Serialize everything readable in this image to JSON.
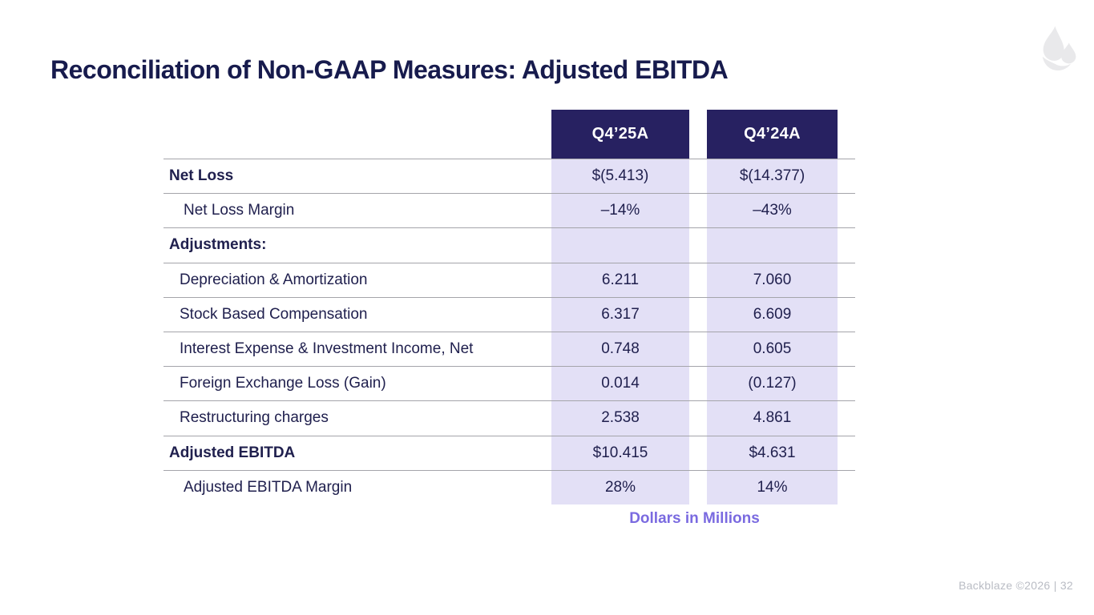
{
  "slide": {
    "title": "Reconciliation of Non-GAAP Measures: Adjusted EBITDA",
    "note": "Dollars in Millions",
    "footer": "Backblaze ©2026 |  32",
    "logo": "backblaze-flame"
  },
  "colors": {
    "header_navy": "#272161",
    "column_highlight": "#e3e0f6",
    "note_purple": "#7a6ae0",
    "text_navy": "#20204e",
    "line_gray": "#a4a4aa",
    "footer_gray": "#b9bcc4"
  },
  "chart_data": {
    "type": "table",
    "title": "Reconciliation of Non-GAAP Measures: Adjusted EBITDA",
    "units": "Dollars in Millions",
    "columns": [
      "Q4’25A",
      "Q4’24A"
    ],
    "rows": [
      {
        "label": "Net Loss",
        "bold": true,
        "indent": 1,
        "values": [
          "$(5.413)",
          "$(14.377)"
        ]
      },
      {
        "label": "Net Loss Margin",
        "bold": false,
        "indent": 2,
        "values": [
          "–14%",
          "–43%"
        ]
      },
      {
        "label": "Adjustments:",
        "bold": true,
        "indent": 1,
        "values": [
          "",
          ""
        ]
      },
      {
        "label": "Depreciation & Amortization",
        "bold": false,
        "indent": 1,
        "values": [
          "6.211",
          "7.060"
        ]
      },
      {
        "label": "Stock Based Compensation",
        "bold": false,
        "indent": 1,
        "values": [
          "6.317",
          "6.609"
        ]
      },
      {
        "label": "Interest Expense & Investment Income, Net",
        "bold": false,
        "indent": 1,
        "values": [
          "0.748",
          "0.605"
        ]
      },
      {
        "label": "Foreign Exchange Loss (Gain)",
        "bold": false,
        "indent": 1,
        "values": [
          "0.014",
          "(0.127)"
        ]
      },
      {
        "label": "Restructuring charges",
        "bold": false,
        "indent": 1,
        "values": [
          "2.538",
          "4.861"
        ]
      },
      {
        "label": "Adjusted EBITDA",
        "bold": true,
        "indent": 1,
        "values": [
          "$10.415",
          "$4.631"
        ]
      },
      {
        "label": "Adjusted EBITDA Margin",
        "bold": false,
        "indent": 2,
        "values": [
          "28%",
          "14%"
        ]
      }
    ]
  }
}
